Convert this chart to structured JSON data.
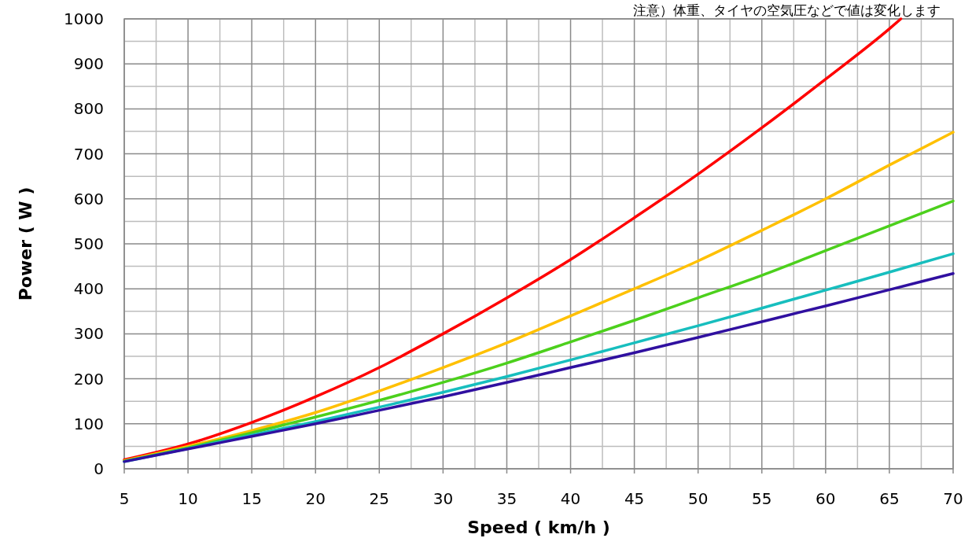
{
  "chart_data": {
    "type": "line",
    "xlabel": "Speed ( km/h )",
    "ylabel": "Power ( W )",
    "annotations": [
      "注意）体重、タイヤの空気圧などで値は変化します"
    ],
    "xlim": [
      5,
      70
    ],
    "xticks": [
      5,
      10,
      15,
      20,
      25,
      30,
      35,
      40,
      45,
      50,
      55,
      60,
      65,
      70
    ],
    "ylim": [
      0,
      1000
    ],
    "yticks": [
      0,
      100,
      200,
      300,
      400,
      500,
      600,
      700,
      800,
      900,
      1000
    ],
    "grid": true,
    "marker": "none",
    "line_style": "solid",
    "series": [
      {
        "color": "#ff0000",
        "x": [
          5,
          10,
          15,
          20,
          25,
          30,
          35,
          40,
          45,
          50,
          55,
          60,
          65,
          65.9
        ],
        "values": [
          20,
          55,
          103,
          160,
          225,
          300,
          380,
          465,
          558,
          655,
          758,
          866,
          978,
          1000
        ]
      },
      {
        "color": "#ffc000",
        "x": [
          5,
          10,
          15,
          20,
          25,
          30,
          35,
          40,
          45,
          50,
          55,
          60,
          65,
          70
        ],
        "values": [
          18,
          50,
          85,
          125,
          173,
          225,
          280,
          340,
          400,
          462,
          530,
          600,
          675,
          748
        ]
      },
      {
        "color": "#4cd01c",
        "x": [
          5,
          10,
          15,
          20,
          25,
          30,
          35,
          40,
          45,
          50,
          55,
          60,
          65,
          70
        ],
        "values": [
          17,
          47,
          80,
          115,
          152,
          192,
          235,
          282,
          330,
          380,
          430,
          485,
          540,
          595
        ]
      },
      {
        "color": "#17bebe",
        "x": [
          5,
          10,
          15,
          20,
          25,
          30,
          35,
          40,
          45,
          50,
          55,
          60,
          65,
          70
        ],
        "values": [
          16,
          45,
          75,
          105,
          137,
          170,
          205,
          242,
          280,
          318,
          357,
          397,
          437,
          478
        ]
      },
      {
        "color": "#3010a0",
        "x": [
          5,
          10,
          15,
          20,
          25,
          30,
          35,
          40,
          45,
          50,
          55,
          60,
          65,
          70
        ],
        "values": [
          16,
          44,
          72,
          100,
          130,
          160,
          192,
          225,
          258,
          292,
          327,
          362,
          398,
          434
        ]
      }
    ]
  }
}
